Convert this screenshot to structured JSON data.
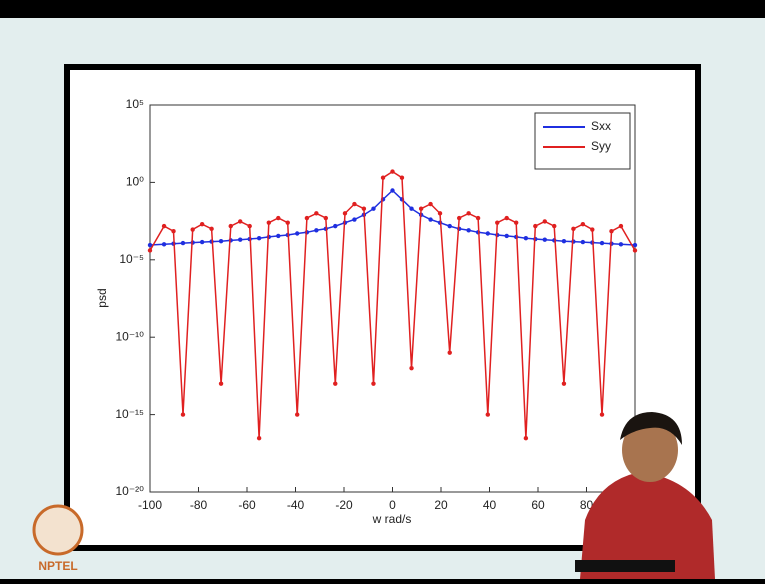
{
  "chart_data": {
    "type": "line",
    "xlabel": "w rad/s",
    "ylabel": "psd",
    "x": [
      -100,
      -94.2,
      -90.3,
      -86.4,
      -82.4,
      -78.5,
      -74.6,
      -70.7,
      -66.7,
      -62.8,
      -58.9,
      -55,
      -51,
      -47.1,
      -43.2,
      -39.3,
      -35.3,
      -31.4,
      -27.5,
      -23.6,
      -19.6,
      -15.7,
      -11.8,
      -7.85,
      -3.9,
      0,
      3.9,
      7.85,
      11.8,
      15.7,
      19.6,
      23.6,
      27.5,
      31.4,
      35.3,
      39.3,
      43.2,
      47.1,
      51,
      55,
      58.9,
      62.8,
      66.7,
      70.7,
      74.6,
      78.5,
      82.4,
      86.4,
      90.3,
      94.2,
      100
    ],
    "series": [
      {
        "name": "Sxx",
        "color": "#1f2fe0",
        "values": [
          9e-05,
          0.0001,
          0.00011,
          0.00012,
          0.00013,
          0.00014,
          0.00015,
          0.00016,
          0.00018,
          0.0002,
          0.00022,
          0.00025,
          0.0003,
          0.00035,
          0.0004,
          0.0005,
          0.0006,
          0.0008,
          0.001,
          0.0015,
          0.0025,
          0.004,
          0.008,
          0.02,
          0.08,
          0.3,
          0.08,
          0.02,
          0.008,
          0.004,
          0.0025,
          0.0015,
          0.001,
          0.0008,
          0.0006,
          0.0005,
          0.0004,
          0.00035,
          0.0003,
          0.00025,
          0.00022,
          0.0002,
          0.00018,
          0.00016,
          0.00015,
          0.00014,
          0.00013,
          0.00012,
          0.00011,
          0.0001,
          9e-05
        ]
      },
      {
        "name": "Syy",
        "color": "#e02020",
        "values": [
          4e-05,
          0.0015,
          0.0007,
          1e-15,
          0.0009,
          0.002,
          0.001,
          1e-13,
          0.0015,
          0.003,
          0.0015,
          3e-17,
          0.0025,
          0.005,
          0.0025,
          1e-15,
          0.005,
          0.01,
          0.005,
          1e-13,
          0.01,
          0.04,
          0.02,
          1e-13,
          2,
          5,
          2,
          1e-12,
          0.02,
          0.04,
          0.01,
          1e-11,
          0.005,
          0.01,
          0.005,
          1e-15,
          0.0025,
          0.005,
          0.0025,
          3e-17,
          0.0015,
          0.003,
          0.0015,
          1e-13,
          0.001,
          0.002,
          0.0009,
          1e-15,
          0.0007,
          0.0015,
          4e-05
        ]
      }
    ],
    "xlim": [
      -100,
      100
    ],
    "xticks": [
      -100,
      -80,
      -60,
      -40,
      -20,
      0,
      20,
      40,
      60,
      80
    ],
    "ylim": [
      1e-20,
      100000
    ],
    "log_y": true,
    "yticks": [
      {
        "value": 1e-20,
        "label": "10⁻²⁰"
      },
      {
        "value": 1e-15,
        "label": "10⁻¹⁵"
      },
      {
        "value": 1e-10,
        "label": "10⁻¹⁰"
      },
      {
        "value": 1e-05,
        "label": "10⁻⁵"
      },
      {
        "value": 1,
        "label": "10⁰"
      },
      {
        "value": 100000,
        "label": "10⁵"
      }
    ],
    "legend": "upper right"
  },
  "logo": "NPTEL"
}
